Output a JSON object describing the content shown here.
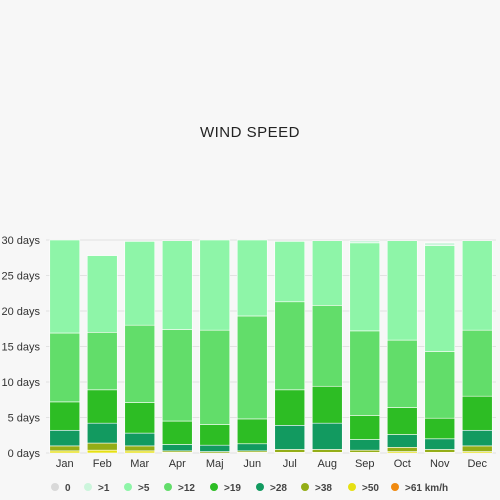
{
  "chart_data": {
    "type": "bar",
    "stacked": true,
    "title": "WIND SPEED",
    "xlabel": "",
    "ylabel": "",
    "ylim": [
      0,
      30
    ],
    "yticks": [
      "0 days",
      "5 days",
      "10 days",
      "15 days",
      "20 days",
      "25 days",
      "30 days"
    ],
    "categories": [
      "Jan",
      "Feb",
      "Mar",
      "Apr",
      "Maj",
      "Jun",
      "Jul",
      "Aug",
      "Sep",
      "Oct",
      "Nov",
      "Dec"
    ],
    "legend_position": "bottom",
    "grid": true,
    "series": [
      {
        "name": "0",
        "color": "#d9d9d9",
        "values": [
          0,
          0,
          0,
          0,
          0,
          0,
          0,
          0,
          0,
          0,
          0,
          0
        ]
      },
      {
        "name": ">1",
        "color": "#ccf5dc",
        "values": [
          0,
          0,
          0,
          0,
          0,
          0,
          0,
          0,
          0.3,
          0,
          0.4,
          0
        ]
      },
      {
        "name": ">5",
        "color": "#8ef5a8",
        "values": [
          13.1,
          10.8,
          11.8,
          12.5,
          12.7,
          10.7,
          8.5,
          9.1,
          12.4,
          14.0,
          14.9,
          12.6
        ]
      },
      {
        "name": ">12",
        "color": "#62dd6a",
        "values": [
          9.7,
          8.1,
          10.9,
          12.9,
          13.3,
          14.5,
          12.4,
          11.4,
          11.9,
          9.5,
          9.4,
          9.3
        ]
      },
      {
        "name": ">19",
        "color": "#2dbd24",
        "values": [
          4.0,
          4.7,
          4.3,
          3.3,
          2.9,
          3.5,
          5.0,
          5.2,
          3.4,
          3.8,
          2.9,
          4.8
        ]
      },
      {
        "name": ">28",
        "color": "#129a60",
        "values": [
          2.2,
          2.8,
          1.8,
          0.9,
          0.9,
          1.0,
          3.4,
          3.7,
          1.5,
          1.8,
          1.5,
          2.2
        ]
      },
      {
        "name": ">38",
        "color": "#93ad16",
        "values": [
          0.7,
          1.0,
          0.7,
          0.2,
          0.2,
          0.2,
          0.4,
          0.4,
          0.3,
          0.6,
          0.4,
          0.8
        ]
      },
      {
        "name": ">50",
        "color": "#e6e013",
        "values": [
          0.3,
          0.4,
          0.3,
          0.1,
          0,
          0.1,
          0.1,
          0.1,
          0.1,
          0.2,
          0.1,
          0.2
        ]
      },
      {
        "name": ">61 km/h",
        "color": "#f08a10",
        "values": [
          0,
          0,
          0,
          0,
          0,
          0,
          0,
          0,
          0,
          0,
          0,
          0
        ]
      }
    ]
  }
}
